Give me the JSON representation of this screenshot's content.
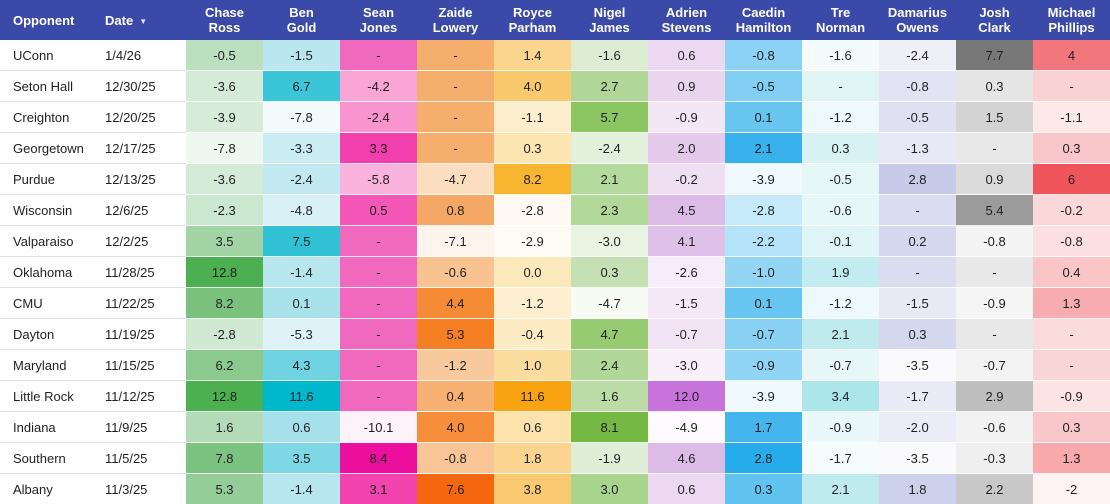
{
  "colors": {
    "header_bg": "#3B4AA9",
    "header_text": "#FFFFFF",
    "row_divider": "#E0E0E0",
    "cell_text": "#1F2023"
  },
  "table": {
    "label_columns": [
      {
        "key": "opponent",
        "label": "Opponent",
        "sortable": false
      },
      {
        "key": "date",
        "label": "Date",
        "sortable": true,
        "sort_icon": "▼"
      }
    ],
    "players": [
      "Chase Ross",
      "Ben Gold",
      "Sean Jones",
      "Zaide Lowery",
      "Royce Parham",
      "Nigel James",
      "Adrien Stevens",
      "Caedin Hamilton",
      "Tre Norman",
      "Damarius Owens",
      "Josh Clark",
      "Michael Phillips"
    ],
    "rows": [
      {
        "opponent": "UConn",
        "date": "1/4/26",
        "cells": [
          {
            "v": "-0.5",
            "bg": "#BCDFC0"
          },
          {
            "v": "-1.5",
            "bg": "#B9E6EF"
          },
          {
            "v": "-",
            "bg": "#F168BF"
          },
          {
            "v": "-",
            "bg": "#F5AE6C"
          },
          {
            "v": "1.4",
            "bg": "#FAD58E"
          },
          {
            "v": "-1.6",
            "bg": "#DCEDD3"
          },
          {
            "v": "0.6",
            "bg": "#ECD8F0"
          },
          {
            "v": "-0.8",
            "bg": "#8BD2F4"
          },
          {
            "v": "-1.6",
            "bg": "#F4FBFC"
          },
          {
            "v": "-2.4",
            "bg": "#EFEFF8"
          },
          {
            "v": "7.7",
            "bg": "#787878"
          },
          {
            "v": "4",
            "bg": "#F1777D"
          }
        ]
      },
      {
        "opponent": "Seton Hall",
        "date": "12/30/25",
        "cells": [
          {
            "v": "-3.6",
            "bg": "#D4EBD7"
          },
          {
            "v": "6.7",
            "bg": "#3BC5D8"
          },
          {
            "v": "-4.2",
            "bg": "#F9A5D6"
          },
          {
            "v": "-",
            "bg": "#F5AE6C"
          },
          {
            "v": "4.0",
            "bg": "#F9C96E"
          },
          {
            "v": "2.7",
            "bg": "#B0D798"
          },
          {
            "v": "0.9",
            "bg": "#EAD5EE"
          },
          {
            "v": "-0.5",
            "bg": "#83CFF3"
          },
          {
            "v": "-",
            "bg": "#DFF4F5"
          },
          {
            "v": "-0.8",
            "bg": "#E2E3F3"
          },
          {
            "v": "0.3",
            "bg": "#E5E5E5"
          },
          {
            "v": "-",
            "bg": "#FAD2D4"
          }
        ]
      },
      {
        "opponent": "Creighton",
        "date": "12/20/25",
        "cells": [
          {
            "v": "-3.9",
            "bg": "#D6ECD9"
          },
          {
            "v": "-7.8",
            "bg": "#F2FAFC"
          },
          {
            "v": "-2.4",
            "bg": "#F894CE"
          },
          {
            "v": "-",
            "bg": "#F5AE6C"
          },
          {
            "v": "-1.1",
            "bg": "#FDEECE"
          },
          {
            "v": "5.7",
            "bg": "#8CC663"
          },
          {
            "v": "-0.9",
            "bg": "#F3E6F5"
          },
          {
            "v": "0.1",
            "bg": "#67C5F0"
          },
          {
            "v": "-1.2",
            "bg": "#EDF9FA"
          },
          {
            "v": "-0.5",
            "bg": "#DFE1F2"
          },
          {
            "v": "1.5",
            "bg": "#D3D3D3"
          },
          {
            "v": "-1.1",
            "bg": "#FDE9EA"
          }
        ]
      },
      {
        "opponent": "Georgetown",
        "date": "12/17/25",
        "cells": [
          {
            "v": "-7.8",
            "bg": "#EFF8F0"
          },
          {
            "v": "-3.3",
            "bg": "#CAECF3"
          },
          {
            "v": "3.3",
            "bg": "#F23FAE"
          },
          {
            "v": "-",
            "bg": "#F5AE6C"
          },
          {
            "v": "0.3",
            "bg": "#FCE5B1"
          },
          {
            "v": "-2.4",
            "bg": "#E3F0DB"
          },
          {
            "v": "2.0",
            "bg": "#E4C9EB"
          },
          {
            "v": "2.1",
            "bg": "#38B1EC"
          },
          {
            "v": "0.3",
            "bg": "#D8F2F3"
          },
          {
            "v": "-1.3",
            "bg": "#E7E8F5"
          },
          {
            "v": "-",
            "bg": "#E8E8E8"
          },
          {
            "v": "0.3",
            "bg": "#F9C7C9"
          }
        ]
      },
      {
        "opponent": "Purdue",
        "date": "12/13/25",
        "cells": [
          {
            "v": "-3.6",
            "bg": "#D4EBD7"
          },
          {
            "v": "-2.4",
            "bg": "#C2E9F1"
          },
          {
            "v": "-5.8",
            "bg": "#FAB3DC"
          },
          {
            "v": "-4.7",
            "bg": "#FBDDC0"
          },
          {
            "v": "8.2",
            "bg": "#F8B630"
          },
          {
            "v": "2.1",
            "bg": "#B5DA9E"
          },
          {
            "v": "-0.2",
            "bg": "#F0DFF3"
          },
          {
            "v": "-3.9",
            "bg": "#EFF9FE"
          },
          {
            "v": "-0.5",
            "bg": "#E5F6F7"
          },
          {
            "v": "2.8",
            "bg": "#C7CAE8"
          },
          {
            "v": "0.9",
            "bg": "#DBDBDB"
          },
          {
            "v": "6",
            "bg": "#F0545C"
          }
        ]
      },
      {
        "opponent": "Wisconsin",
        "date": "12/6/25",
        "cells": [
          {
            "v": "-2.3",
            "bg": "#CBE7CF"
          },
          {
            "v": "-4.8",
            "bg": "#D7F1F6"
          },
          {
            "v": "0.5",
            "bg": "#F557B8"
          },
          {
            "v": "0.8",
            "bg": "#F5A865"
          },
          {
            "v": "-2.8",
            "bg": "#FEFAF3"
          },
          {
            "v": "2.3",
            "bg": "#B2D89A"
          },
          {
            "v": "4.5",
            "bg": "#DCBCE7"
          },
          {
            "v": "-2.8",
            "bg": "#C6EAFA"
          },
          {
            "v": "-0.6",
            "bg": "#E6F7F8"
          },
          {
            "v": "-",
            "bg": "#DADCF0"
          },
          {
            "v": "5.4",
            "bg": "#9B9B9B"
          },
          {
            "v": "-0.2",
            "bg": "#FAD8D9"
          }
        ]
      },
      {
        "opponent": "Valparaiso",
        "date": "12/2/25",
        "cells": [
          {
            "v": "3.5",
            "bg": "#A2D4A6"
          },
          {
            "v": "7.5",
            "bg": "#30C1D5"
          },
          {
            "v": "-",
            "bg": "#F168BF"
          },
          {
            "v": "-7.1",
            "bg": "#FDF4EC"
          },
          {
            "v": "-2.9",
            "bg": "#FEFAF4"
          },
          {
            "v": "-3.0",
            "bg": "#E9F3E2"
          },
          {
            "v": "4.1",
            "bg": "#DEC0E8"
          },
          {
            "v": "-2.2",
            "bg": "#B4E2F8"
          },
          {
            "v": "-0.1",
            "bg": "#DFF4F6"
          },
          {
            "v": "0.2",
            "bg": "#D5D8EE"
          },
          {
            "v": "-0.8",
            "bg": "#F4F4F4"
          },
          {
            "v": "-0.8",
            "bg": "#FCE0E1"
          }
        ]
      },
      {
        "opponent": "Oklahoma",
        "date": "11/28/25",
        "cells": [
          {
            "v": "12.8",
            "bg": "#4CAF50"
          },
          {
            "v": "-1.4",
            "bg": "#B8E6EF"
          },
          {
            "v": "-",
            "bg": "#F168BF"
          },
          {
            "v": "-0.6",
            "bg": "#F8C291"
          },
          {
            "v": "0.0",
            "bg": "#FCE9BB"
          },
          {
            "v": "0.3",
            "bg": "#C5E1B3"
          },
          {
            "v": "-2.6",
            "bg": "#F7ECF9"
          },
          {
            "v": "-1.0",
            "bg": "#93D6F4"
          },
          {
            "v": "1.9",
            "bg": "#C2ECEF"
          },
          {
            "v": "-",
            "bg": "#DADCF0"
          },
          {
            "v": "-",
            "bg": "#E8E8E8"
          },
          {
            "v": "0.4",
            "bg": "#F9C5C7"
          }
        ]
      },
      {
        "opponent": "CMU",
        "date": "11/22/25",
        "cells": [
          {
            "v": "8.2",
            "bg": "#79C17D"
          },
          {
            "v": "0.1",
            "bg": "#AAE2EC"
          },
          {
            "v": "-",
            "bg": "#F168BF"
          },
          {
            "v": "4.4",
            "bg": "#F58B35"
          },
          {
            "v": "-1.2",
            "bg": "#FDEFD0"
          },
          {
            "v": "-4.7",
            "bg": "#F7FBF4"
          },
          {
            "v": "-1.5",
            "bg": "#F4E7F6"
          },
          {
            "v": "0.1",
            "bg": "#67C5F0"
          },
          {
            "v": "-1.2",
            "bg": "#EDF9FA"
          },
          {
            "v": "-1.5",
            "bg": "#E9E9F6"
          },
          {
            "v": "-0.9",
            "bg": "#F5F5F5"
          },
          {
            "v": "1.3",
            "bg": "#F7ACAF"
          }
        ]
      },
      {
        "opponent": "Dayton",
        "date": "11/19/25",
        "cells": [
          {
            "v": "-2.8",
            "bg": "#CFE9D3"
          },
          {
            "v": "-5.3",
            "bg": "#DDF3F8"
          },
          {
            "v": "-",
            "bg": "#F168BF"
          },
          {
            "v": "5.3",
            "bg": "#F57F22"
          },
          {
            "v": "-0.4",
            "bg": "#FDEBC3"
          },
          {
            "v": "4.7",
            "bg": "#97CB72"
          },
          {
            "v": "-0.7",
            "bg": "#F2E3F4"
          },
          {
            "v": "-0.7",
            "bg": "#88D1F3"
          },
          {
            "v": "2.1",
            "bg": "#BFEBEE"
          },
          {
            "v": "0.3",
            "bg": "#D5D7EE"
          },
          {
            "v": "-",
            "bg": "#E8E8E8"
          },
          {
            "v": "-",
            "bg": "#FBDCDD"
          }
        ]
      },
      {
        "opponent": "Maryland",
        "date": "11/15/25",
        "cells": [
          {
            "v": "6.2",
            "bg": "#8BC98F"
          },
          {
            "v": "4.3",
            "bg": "#6FD3E2"
          },
          {
            "v": "-",
            "bg": "#F168BF"
          },
          {
            "v": "-1.2",
            "bg": "#F9C99E"
          },
          {
            "v": "1.0",
            "bg": "#FBDC9F"
          },
          {
            "v": "2.4",
            "bg": "#B1D899"
          },
          {
            "v": "-3.0",
            "bg": "#F9F0FA"
          },
          {
            "v": "-0.9",
            "bg": "#8FD4F4"
          },
          {
            "v": "-0.7",
            "bg": "#E7F7F8"
          },
          {
            "v": "-3.5",
            "bg": "#FAFAFD"
          },
          {
            "v": "-0.7",
            "bg": "#F3F3F3"
          },
          {
            "v": "-",
            "bg": "#FAD5D7"
          }
        ]
      },
      {
        "opponent": "Little Rock",
        "date": "11/12/25",
        "cells": [
          {
            "v": "12.8",
            "bg": "#4CAF50"
          },
          {
            "v": "11.6",
            "bg": "#00B8CC"
          },
          {
            "v": "-",
            "bg": "#F168BF"
          },
          {
            "v": "0.4",
            "bg": "#F7B072"
          },
          {
            "v": "11.6",
            "bg": "#F9A310"
          },
          {
            "v": "1.6",
            "bg": "#BBDCA6"
          },
          {
            "v": "12.0",
            "bg": "#C873DC"
          },
          {
            "v": "-3.9",
            "bg": "#EFF9FE"
          },
          {
            "v": "3.4",
            "bg": "#ACE6EB"
          },
          {
            "v": "-1.7",
            "bg": "#EAEBF6"
          },
          {
            "v": "2.9",
            "bg": "#BEBEBE"
          },
          {
            "v": "-0.9",
            "bg": "#FCE4E5"
          }
        ]
      },
      {
        "opponent": "Indiana",
        "date": "11/9/25",
        "cells": [
          {
            "v": "1.6",
            "bg": "#B3DBB7"
          },
          {
            "v": "0.6",
            "bg": "#A5E0EB"
          },
          {
            "v": "-10.1",
            "bg": "#FDF2F8"
          },
          {
            "v": "4.0",
            "bg": "#F68E3B"
          },
          {
            "v": "0.6",
            "bg": "#FCE3AC"
          },
          {
            "v": "8.1",
            "bg": "#76B844"
          },
          {
            "v": "-4.9",
            "bg": "#FDFAFE"
          },
          {
            "v": "1.7",
            "bg": "#44B6ED"
          },
          {
            "v": "-0.9",
            "bg": "#EAF8F9"
          },
          {
            "v": "-2.0",
            "bg": "#ECECF7"
          },
          {
            "v": "-0.6",
            "bg": "#F2F2F2"
          },
          {
            "v": "0.3",
            "bg": "#F9C7C9"
          }
        ]
      },
      {
        "opponent": "Southern",
        "date": "11/5/25",
        "cells": [
          {
            "v": "7.8",
            "bg": "#7CC280"
          },
          {
            "v": "3.5",
            "bg": "#7DD7E5"
          },
          {
            "v": "8.4",
            "bg": "#EC0E9C"
          },
          {
            "v": "-0.8",
            "bg": "#F9C597"
          },
          {
            "v": "1.8",
            "bg": "#FBD590"
          },
          {
            "v": "-1.9",
            "bg": "#DFEFD7"
          },
          {
            "v": "4.6",
            "bg": "#DCBBE7"
          },
          {
            "v": "2.8",
            "bg": "#26ABEB"
          },
          {
            "v": "-1.7",
            "bg": "#F5FCFC"
          },
          {
            "v": "-3.5",
            "bg": "#FAFAFD"
          },
          {
            "v": "-0.3",
            "bg": "#EFEFEF"
          },
          {
            "v": "1.3",
            "bg": "#F7A9AC"
          }
        ]
      },
      {
        "opponent": "Albany",
        "date": "11/3/25",
        "cells": [
          {
            "v": "5.3",
            "bg": "#95CD99"
          },
          {
            "v": "-1.4",
            "bg": "#B8E6EF"
          },
          {
            "v": "3.1",
            "bg": "#F343AF"
          },
          {
            "v": "7.6",
            "bg": "#F4670E"
          },
          {
            "v": "3.8",
            "bg": "#F9CA72"
          },
          {
            "v": "3.0",
            "bg": "#A9D48E"
          },
          {
            "v": "0.6",
            "bg": "#ECD8F0"
          },
          {
            "v": "0.3",
            "bg": "#61C3EF"
          },
          {
            "v": "2.1",
            "bg": "#BFEBEE"
          },
          {
            "v": "1.8",
            "bg": "#CED1EB"
          },
          {
            "v": "2.2",
            "bg": "#C8C8C8"
          },
          {
            "v": "-2",
            "bg": "#FEF2F2"
          }
        ]
      }
    ]
  }
}
